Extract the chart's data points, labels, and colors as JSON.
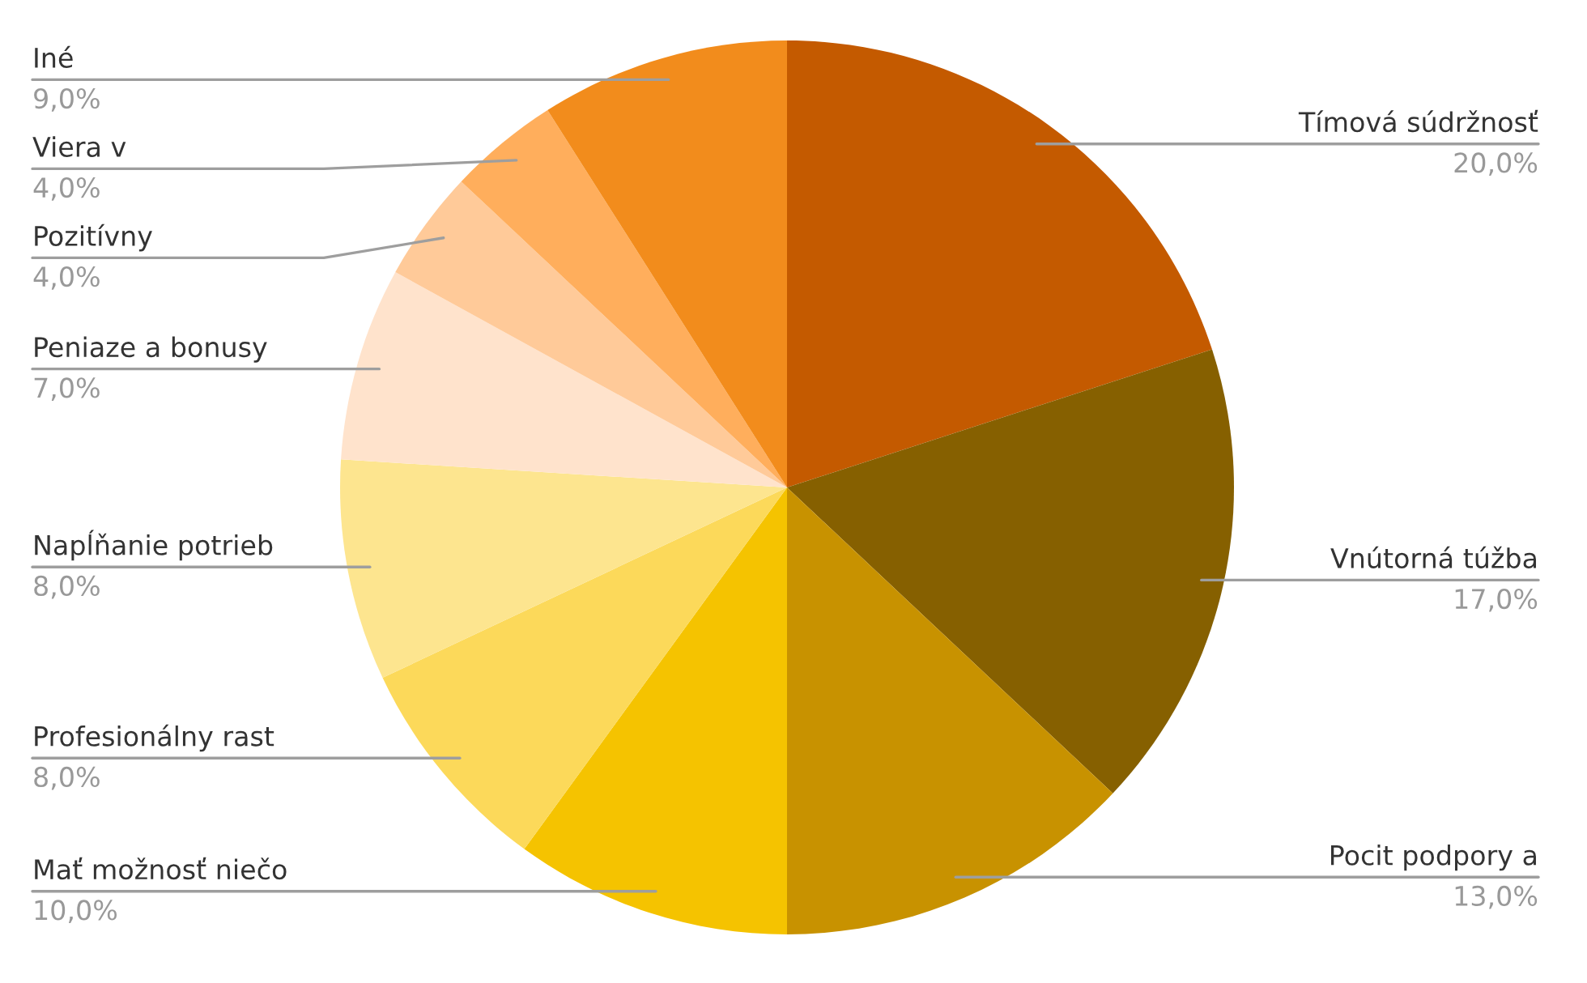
{
  "chart_data": {
    "type": "pie",
    "categories": [
      "Tímová súdržnosť",
      "Vnútorná túžba",
      "Pocit podpory a",
      "Mať možnosť niečo",
      "Profesionálny rast",
      "Napĺňanie potrieb",
      "Peniaze a bonusy",
      "Pozitívny",
      "Viera v",
      "Iné"
    ],
    "values": [
      20,
      17,
      13,
      10,
      8,
      8,
      7,
      4,
      4,
      9
    ],
    "value_labels": [
      "20,0%",
      "17,0%",
      "13,0%",
      "10,0%",
      "8,0%",
      "8,0%",
      "7,0%",
      "4,0%",
      "4,0%",
      "9,0%"
    ],
    "colors": [
      "#c45a00",
      "#866000",
      "#c89200",
      "#f5c300",
      "#fcd95a",
      "#fde58f",
      "#ffe3cc",
      "#ffca99",
      "#ffae5c",
      "#f28c1c"
    ]
  }
}
